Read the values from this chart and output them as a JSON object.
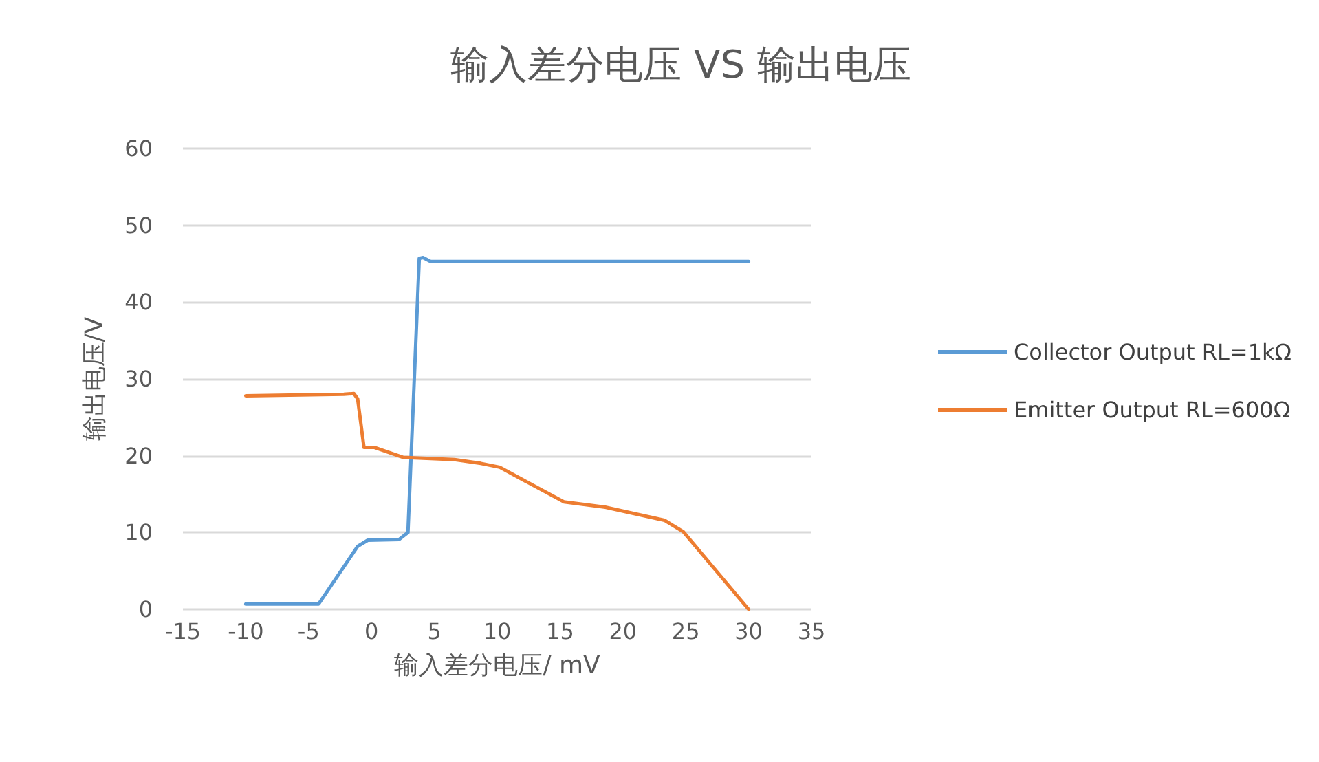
{
  "chart_data": {
    "type": "line",
    "title": "输入差分电压 VS 输出电压",
    "xlabel": "输入差分电压/ mV",
    "ylabel": "输出电压/V",
    "xlim": [
      -15,
      35
    ],
    "xticks": [
      -15,
      -10,
      -5,
      0,
      5,
      10,
      15,
      20,
      25,
      30,
      35
    ],
    "ylim": [
      0,
      60
    ],
    "yticks": [
      0,
      10,
      20,
      30,
      40,
      50,
      60
    ],
    "grid": "y",
    "legend": "right",
    "marker": "none",
    "line_style": "solid",
    "series": [
      {
        "name": "Collector Output RL=1kΩ",
        "color": "#5b9bd5",
        "x": [
          -10,
          -4.2,
          -1.1,
          -0.3,
          2.2,
          2.9,
          3.8,
          4.1,
          4.7,
          30
        ],
        "values": [
          0.7,
          0.7,
          8.2,
          9,
          9.1,
          10,
          45.7,
          45.8,
          45.3,
          45.3
        ]
      },
      {
        "name": "Emitter Output RL=600Ω",
        "color": "#ed7d31",
        "x": [
          -10,
          -2.2,
          -1.4,
          -1.1,
          -0.6,
          0.2,
          2.5,
          6.6,
          8.7,
          10.2,
          15.3,
          18.6,
          23.3,
          24.8,
          30
        ],
        "values": [
          27.8,
          28,
          28.1,
          27.4,
          21.1,
          21.1,
          19.8,
          19.5,
          19,
          18.5,
          14,
          13.3,
          11.6,
          10.1,
          0
        ]
      }
    ]
  }
}
